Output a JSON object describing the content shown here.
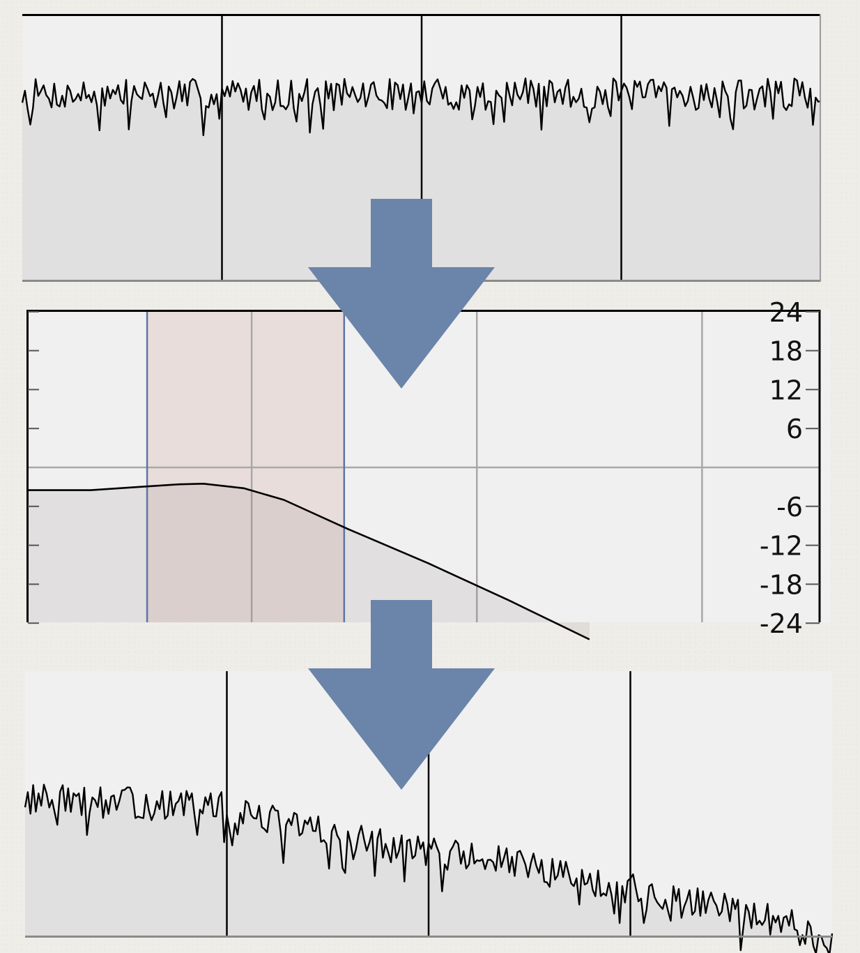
{
  "colors": {
    "background": "#efede8",
    "plot_background": "#f0f0f0",
    "waveform_fill": "#e0e0e0",
    "trace": "#000000",
    "band_highlight": "#e8dddb",
    "band_edge": "#5f73a8",
    "eq_grid": "#a8a8a8",
    "arrow": "#6b84a9"
  },
  "diagram": {
    "arrows": [
      {
        "name": "arrow-down",
        "direction": "down"
      },
      {
        "name": "arrow-down",
        "direction": "down"
      }
    ]
  },
  "chart_data": [
    {
      "name": "input-spectrum",
      "type": "line",
      "description_level": "flat noise spectrum",
      "xlabel": "",
      "ylabel": "",
      "vertical_gridlines": 3,
      "ylim": [
        0,
        1
      ],
      "trend": {
        "start": 0.7,
        "end": 0.7
      },
      "noise_amplitude": 0.06,
      "points": 300,
      "seed": 7,
      "grid": true
    },
    {
      "name": "eq-response",
      "type": "line",
      "ylabel": "",
      "y_ticks": [
        "18",
        "12",
        "6",
        "-6",
        "-12",
        "-18"
      ],
      "y_ticks_partial": [
        "24",
        "-24"
      ],
      "ylim": [
        -26,
        26
      ],
      "curve": [
        {
          "x": 0.0,
          "y": -3.5
        },
        {
          "x": 0.08,
          "y": -3.5
        },
        {
          "x": 0.14,
          "y": -3.0
        },
        {
          "x": 0.19,
          "y": -2.6
        },
        {
          "x": 0.22,
          "y": -2.5
        },
        {
          "x": 0.27,
          "y": -3.2
        },
        {
          "x": 0.32,
          "y": -5.0
        },
        {
          "x": 0.4,
          "y": -9.5
        },
        {
          "x": 0.5,
          "y": -14.8
        },
        {
          "x": 0.6,
          "y": -20.5
        },
        {
          "x": 0.7,
          "y": -26.5
        }
      ],
      "band": {
        "start": 0.15,
        "end": 0.395
      },
      "vertical_gridlines_x": [
        0.28,
        0.56,
        0.84
      ],
      "grid": true
    },
    {
      "name": "output-spectrum",
      "type": "line",
      "description_level": "noise spectrum after low-pass filter",
      "xlabel": "",
      "ylabel": "",
      "vertical_gridlines": 3,
      "ylim": [
        0,
        1
      ],
      "trend_segments": [
        {
          "x": 0.0,
          "y": 0.52
        },
        {
          "x": 0.24,
          "y": 0.49
        },
        {
          "x": 0.42,
          "y": 0.36
        },
        {
          "x": 0.6,
          "y": 0.28
        },
        {
          "x": 0.75,
          "y": 0.18
        },
        {
          "x": 0.9,
          "y": 0.09
        },
        {
          "x": 1.0,
          "y": 0.01
        }
      ],
      "noise_amplitude": 0.06,
      "points": 300,
      "seed": 13,
      "grid": true
    }
  ]
}
